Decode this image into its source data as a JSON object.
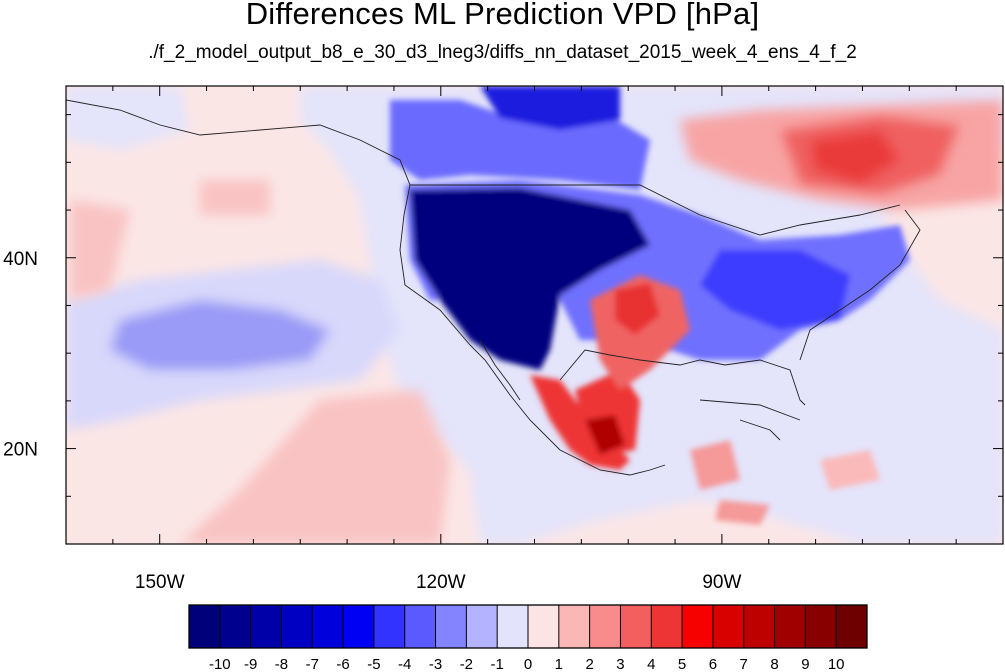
{
  "title": "Differences ML Prediction VPD [hPa]",
  "subtitle": "./f_2_model_output_b8_e_30_d3_lneg3/diffs_nn_dataset_2015_week_4_ens_4_f_2",
  "map": {
    "lon_range": [
      -160,
      -60
    ],
    "lat_range": [
      10,
      58
    ],
    "lon_ticks": [
      {
        "value": -150,
        "label": "150W"
      },
      {
        "value": -120,
        "label": "120W"
      },
      {
        "value": -90,
        "label": "90W"
      }
    ],
    "lat_ticks": [
      {
        "value": 40,
        "label": "40N"
      },
      {
        "value": 20,
        "label": "20N"
      }
    ]
  },
  "colorbar": {
    "labels": [
      "-10",
      "-9",
      "-8",
      "-7",
      "-6",
      "-5",
      "-4",
      "-3",
      "-2",
      "-1",
      "0",
      "1",
      "2",
      "3",
      "4",
      "5",
      "6",
      "7",
      "8",
      "9",
      "10"
    ],
    "colors": [
      "#00007a",
      "#00008f",
      "#0000a8",
      "#0000c2",
      "#0000dc",
      "#0000f5",
      "#3333ff",
      "#5a5aff",
      "#8484ff",
      "#b3b3ff",
      "#e3e3fb",
      "#fde4e4",
      "#fbb6b6",
      "#f88b8b",
      "#f35f5f",
      "#ee3535",
      "#f70000",
      "#d90000",
      "#bd0000",
      "#a00000",
      "#880000",
      "#6e0000"
    ]
  }
}
